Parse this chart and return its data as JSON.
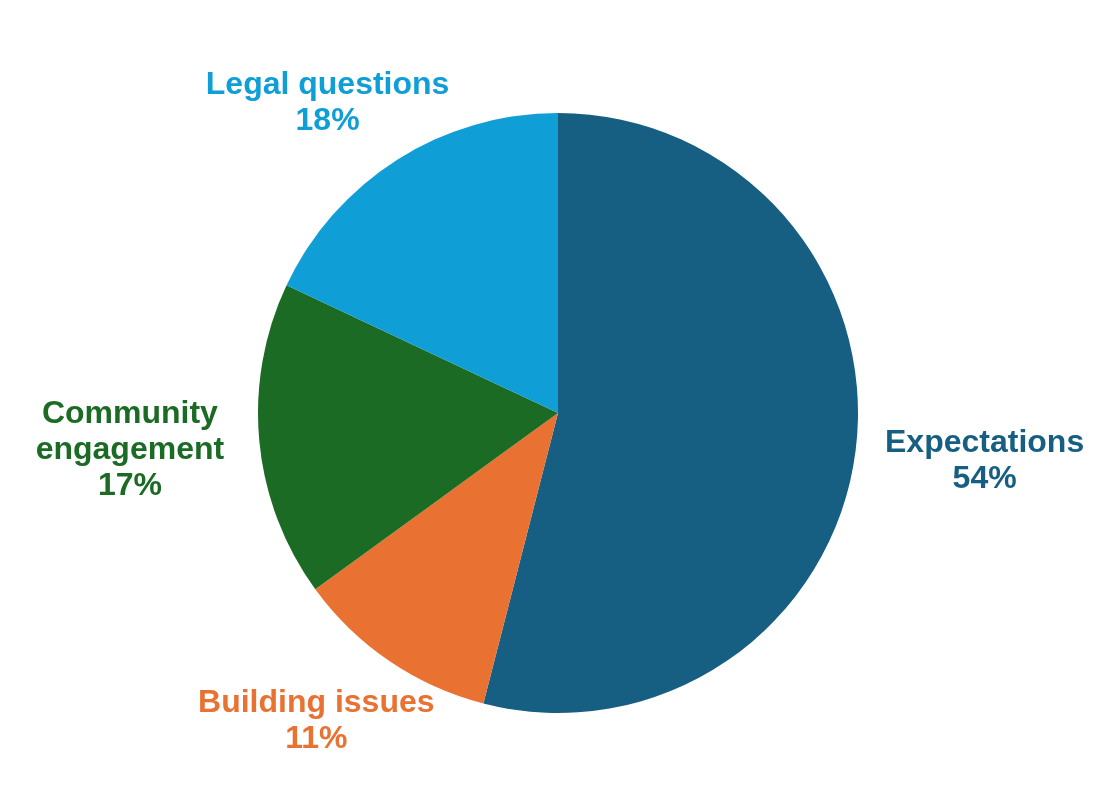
{
  "chart_data": {
    "type": "pie",
    "categories": [
      "Expectations",
      "Building issues",
      "Community engagement",
      "Legal questions"
    ],
    "values": [
      54,
      11,
      17,
      18
    ],
    "colors": [
      "#175f82",
      "#e97132",
      "#1b6b24",
      "#0f9ed5"
    ],
    "value_labels": [
      "54%",
      "11%",
      "17%",
      "18%"
    ],
    "legend": false
  }
}
